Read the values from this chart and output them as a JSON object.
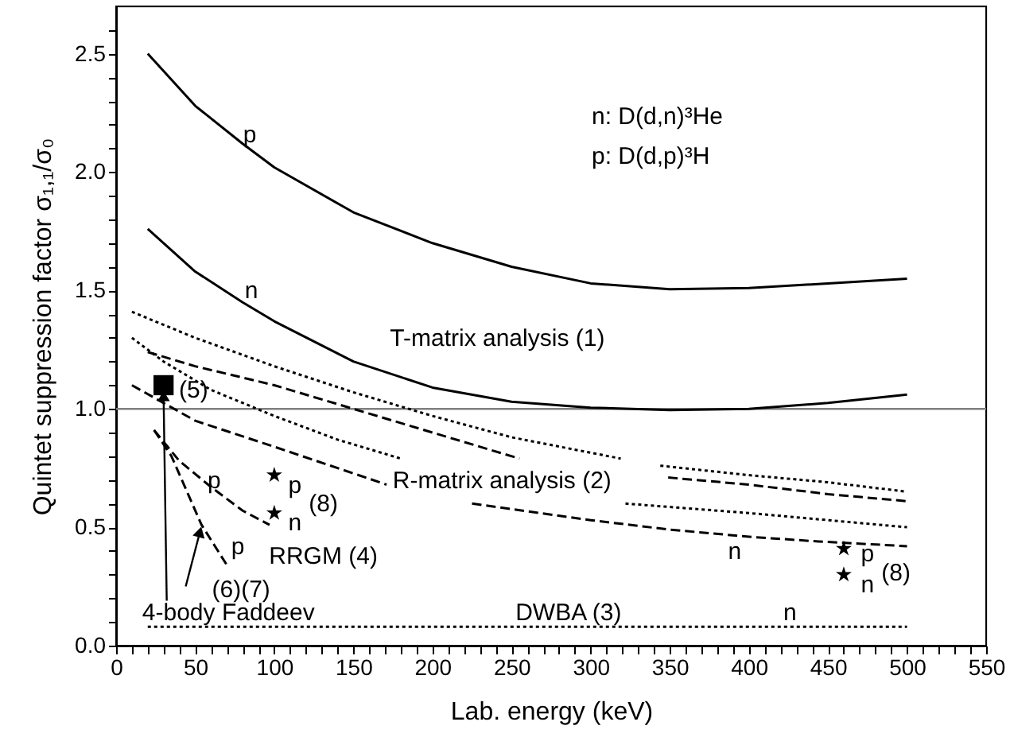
{
  "chart_data": {
    "type": "line",
    "xlabel": "Lab. energy (keV)",
    "ylabel": "Quintet suppression factor σ₁,₁/σ₀",
    "xlim": [
      0,
      550
    ],
    "ylim": [
      0,
      2.7
    ],
    "xticks": [
      0,
      {
        "value": 10,
        "label": null
      },
      {
        "value": 20,
        "label": null
      },
      {
        "value": 30,
        "label": null
      },
      {
        "value": 40,
        "label": null
      },
      50,
      {
        "value": 60,
        "label": null
      },
      {
        "value": 70,
        "label": null
      },
      {
        "value": 80,
        "label": null
      },
      {
        "value": 90,
        "label": null
      },
      100,
      {
        "value": 110,
        "label": null
      },
      {
        "value": 120,
        "label": null
      },
      {
        "value": 130,
        "label": null
      },
      {
        "value": 140,
        "label": null
      },
      150,
      {
        "value": 160,
        "label": null
      },
      {
        "value": 170,
        "label": null
      },
      {
        "value": 180,
        "label": null
      },
      {
        "value": 190,
        "label": null
      },
      200,
      {
        "value": 210,
        "label": null
      },
      {
        "value": 220,
        "label": null
      },
      {
        "value": 230,
        "label": null
      },
      {
        "value": 240,
        "label": null
      },
      250,
      {
        "value": 260,
        "label": null
      },
      {
        "value": 270,
        "label": null
      },
      {
        "value": 280,
        "label": null
      },
      {
        "value": 290,
        "label": null
      },
      300,
      {
        "value": 310,
        "label": null
      },
      {
        "value": 320,
        "label": null
      },
      {
        "value": 330,
        "label": null
      },
      {
        "value": 340,
        "label": null
      },
      350,
      {
        "value": 360,
        "label": null
      },
      {
        "value": 370,
        "label": null
      },
      {
        "value": 380,
        "label": null
      },
      {
        "value": 390,
        "label": null
      },
      400,
      {
        "value": 410,
        "label": null
      },
      {
        "value": 420,
        "label": null
      },
      {
        "value": 430,
        "label": null
      },
      {
        "value": 440,
        "label": null
      },
      450,
      {
        "value": 460,
        "label": null
      },
      {
        "value": 470,
        "label": null
      },
      {
        "value": 480,
        "label": null
      },
      {
        "value": 490,
        "label": null
      },
      500,
      {
        "value": 510,
        "label": null
      },
      {
        "value": 520,
        "label": null
      },
      {
        "value": 530,
        "label": null
      },
      {
        "value": 540,
        "label": null
      },
      550
    ],
    "yticks": [
      {
        "value": 0,
        "label": "0.0"
      },
      {
        "value": 0.1,
        "label": null
      },
      {
        "value": 0.2,
        "label": null
      },
      {
        "value": 0.3,
        "label": null
      },
      {
        "value": 0.4,
        "label": null
      },
      0.5,
      {
        "value": 0.6,
        "label": null
      },
      {
        "value": 0.7,
        "label": null
      },
      {
        "value": 0.8,
        "label": null
      },
      {
        "value": 0.9,
        "label": null
      },
      {
        "value": 1,
        "label": "1.0"
      },
      {
        "value": 1.1,
        "label": null
      },
      {
        "value": 1.2,
        "label": null
      },
      {
        "value": 1.3,
        "label": null
      },
      {
        "value": 1.4,
        "label": null
      },
      1.5,
      {
        "value": 1.6,
        "label": null
      },
      {
        "value": 1.7,
        "label": null
      },
      {
        "value": 1.8,
        "label": null
      },
      {
        "value": 1.9,
        "label": null
      },
      {
        "value": 2,
        "label": "2.0"
      },
      {
        "value": 2.1,
        "label": null
      },
      {
        "value": 2.2,
        "label": null
      },
      {
        "value": 2.3,
        "label": null
      },
      {
        "value": 2.4,
        "label": null
      },
      2.5,
      {
        "value": 2.6,
        "label": null
      }
    ],
    "series": [
      {
        "color": "#000000",
        "line_style": "solid",
        "x": [
          20,
          50,
          80,
          100,
          150,
          200,
          250,
          300,
          350,
          400,
          450,
          500
        ],
        "values": [
          2.5,
          2.28,
          2.12,
          2.02,
          1.83,
          1.7,
          1.6,
          1.53,
          1.505,
          1.51,
          1.53,
          1.55
        ]
      },
      {
        "color": "#000000",
        "line_style": "solid",
        "x": [
          20,
          50,
          80,
          100,
          150,
          200,
          250,
          300,
          350,
          400,
          450,
          500
        ],
        "values": [
          1.76,
          1.58,
          1.45,
          1.37,
          1.2,
          1.09,
          1.03,
          1.005,
          0.995,
          1.0,
          1.025,
          1.06
        ]
      },
      {
        "type": "line",
        "color": "#000000",
        "line_style": "dotted",
        "x": [
          10,
          50,
          100,
          150,
          200,
          250,
          319,
          330,
          344,
          400,
          450,
          500
        ],
        "values": [
          1.41,
          1.3,
          1.18,
          1.07,
          0.97,
          0.88,
          0.79,
          null,
          0.76,
          0.72,
          0.69,
          0.65
        ]
      },
      {
        "type": "line",
        "color": "#000000",
        "line_style": "dashed",
        "x": [
          20,
          50,
          100,
          150,
          200,
          255,
          300,
          349,
          400,
          450,
          500
        ],
        "values": [
          1.24,
          1.18,
          1.1,
          1.0,
          0.9,
          0.79,
          null,
          0.71,
          0.68,
          0.64,
          0.61
        ]
      },
      {
        "type": "line",
        "color": "#000000",
        "line_style": "dotted",
        "x": [
          10,
          30,
          60,
          100,
          140,
          180,
          250,
          322,
          400,
          500
        ],
        "values": [
          1.3,
          1.2,
          1.08,
          0.97,
          0.87,
          0.79,
          null,
          0.6,
          0.56,
          0.5
        ]
      },
      {
        "type": "line",
        "color": "#000000",
        "line_style": "dashed",
        "x": [
          10,
          50,
          100,
          140,
          171,
          200,
          225,
          300,
          350,
          400,
          444,
          500
        ],
        "values": [
          1.1,
          0.95,
          0.84,
          0.75,
          0.68,
          null,
          0.6,
          0.53,
          0.49,
          0.46,
          0.44,
          0.42
        ]
      },
      {
        "type": "line",
        "color": "#000000",
        "line_style": "dashed",
        "x": [
          24,
          40,
          60,
          80,
          97
        ],
        "values": [
          0.91,
          0.78,
          0.67,
          0.57,
          0.51
        ]
      },
      {
        "type": "line",
        "color": "#000000",
        "line_style": "dashed",
        "x": [
          24,
          35,
          54,
          71
        ],
        "values": [
          0.91,
          0.8,
          0.51,
          0.33
        ]
      },
      {
        "type": "line",
        "color": "#000000",
        "line_style": "dotted",
        "x": [
          20,
          500
        ],
        "values": [
          0.08,
          0.08
        ]
      },
      {
        "type": "scatter",
        "color": "#000000",
        "marker": "square",
        "x": [
          30
        ],
        "values": [
          1.1
        ]
      },
      {
        "type": "scatter",
        "color": "#000000",
        "marker": "star",
        "x": [
          100,
          460
        ],
        "values": [
          0.72,
          0.41
        ]
      },
      {
        "type": "scatter",
        "color": "#000000",
        "marker": "star",
        "x": [
          100,
          460
        ],
        "values": [
          0.56,
          0.3
        ]
      }
    ],
    "ref_lines": [
      {
        "axis": "y",
        "value": 1.0,
        "color": "#808080"
      }
    ],
    "annotations": [
      "n: D(d,n)³He",
      "p:  D(d,p)³H",
      "p",
      "n",
      "T-matrix analysis (1)",
      "R-matrix analysis (2)",
      "n",
      "p",
      "n",
      "(8)",
      "DWBA (3)",
      "n",
      {
        "text": "4-body Faddeev",
        "x": 30,
        "y": 1.1
      },
      {
        "text": "(6)(7)",
        "x": 54,
        "y": 0.51
      },
      "RRGM (4)",
      "p",
      "p",
      "p",
      "n",
      "(8)",
      "(5)"
    ]
  }
}
